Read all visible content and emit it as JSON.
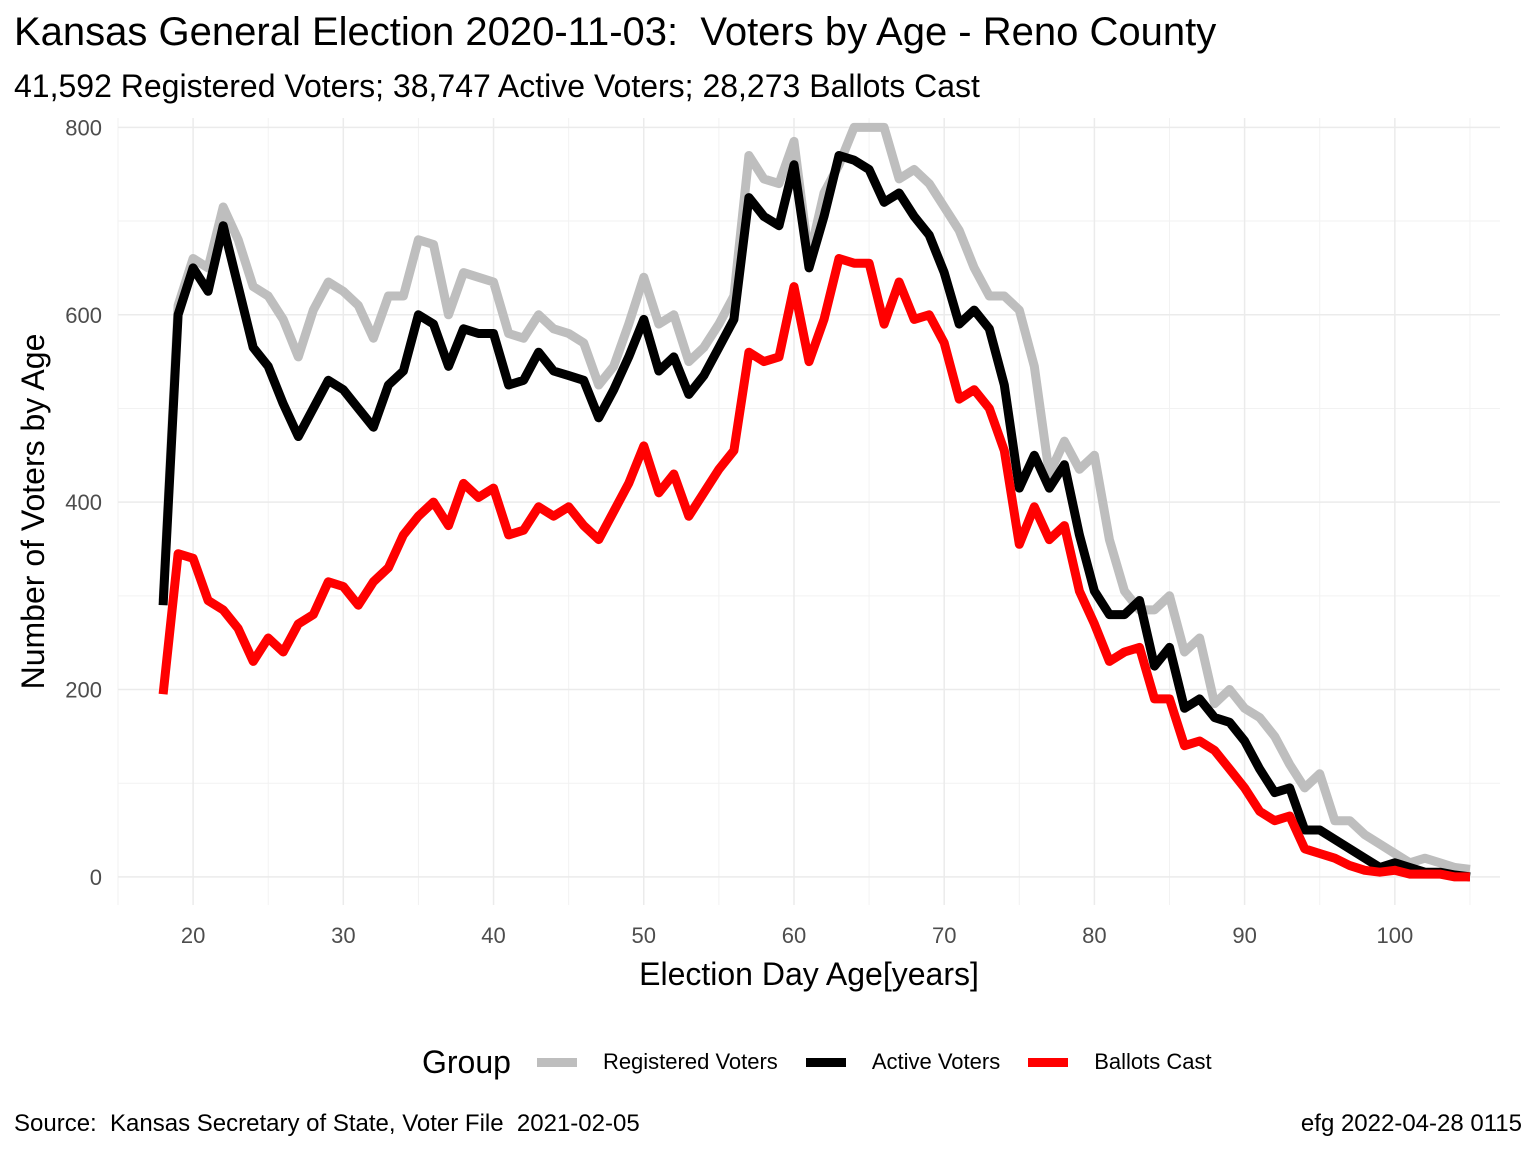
{
  "title": "Kansas General Election 2020-11-03:  Voters by Age - Reno County",
  "subtitle": "41,592 Registered Voters; 38,747 Active Voters; 28,273 Ballots Cast",
  "caption_left": "Source:  Kansas Secretary of State, Voter File  2021-02-05",
  "caption_right": "efg 2022-04-28 0115",
  "legend": {
    "title": "Group",
    "position": "bottom",
    "items": [
      {
        "label": "Registered Voters",
        "color": "#bebebe"
      },
      {
        "label": "Active Voters",
        "color": "#000000"
      },
      {
        "label": "Ballots Cast",
        "color": "#ff0000"
      }
    ]
  },
  "chart_data": {
    "type": "line",
    "xlabel": "Election Day Age[years]",
    "ylabel": "Number of Voters by Age",
    "xlim": [
      15,
      107
    ],
    "ylim": [
      -30,
      810
    ],
    "xticks": [
      20,
      30,
      40,
      50,
      60,
      70,
      80,
      90,
      100
    ],
    "yticks": [
      0,
      200,
      400,
      600,
      800
    ],
    "grid": true,
    "x_start": 18,
    "series": [
      {
        "name": "Registered Voters",
        "color": "#bebebe",
        "values": [
          295,
          610,
          660,
          650,
          715,
          680,
          630,
          620,
          595,
          555,
          605,
          635,
          625,
          610,
          575,
          620,
          620,
          680,
          675,
          600,
          645,
          640,
          635,
          580,
          575,
          600,
          585,
          580,
          570,
          525,
          545,
          590,
          640,
          590,
          600,
          550,
          565,
          590,
          620,
          770,
          745,
          740,
          785,
          660,
          730,
          760,
          800,
          800,
          800,
          745,
          755,
          740,
          715,
          690,
          650,
          620,
          620,
          605,
          545,
          430,
          465,
          435,
          450,
          360,
          305,
          285,
          285,
          300,
          240,
          255,
          185,
          200,
          180,
          170,
          150,
          120,
          95,
          110,
          60,
          60,
          45,
          35,
          25,
          15,
          20,
          15,
          10,
          8
        ]
      },
      {
        "name": "Active Voters",
        "color": "#000000",
        "values": [
          290,
          600,
          650,
          625,
          695,
          630,
          565,
          545,
          505,
          470,
          500,
          530,
          520,
          500,
          480,
          525,
          540,
          600,
          590,
          545,
          585,
          580,
          580,
          525,
          530,
          560,
          540,
          535,
          530,
          490,
          520,
          555,
          595,
          540,
          555,
          515,
          535,
          565,
          595,
          725,
          705,
          695,
          760,
          650,
          705,
          770,
          765,
          755,
          720,
          730,
          705,
          685,
          645,
          590,
          605,
          585,
          525,
          415,
          450,
          415,
          440,
          365,
          305,
          280,
          280,
          295,
          225,
          245,
          180,
          190,
          170,
          165,
          145,
          115,
          90,
          95,
          50,
          50,
          40,
          30,
          20,
          10,
          15,
          10,
          5,
          5,
          2,
          0
        ]
      },
      {
        "name": "Ballots Cast",
        "color": "#ff0000",
        "values": [
          195,
          345,
          340,
          295,
          285,
          265,
          230,
          255,
          240,
          270,
          280,
          315,
          310,
          290,
          315,
          330,
          365,
          385,
          400,
          375,
          420,
          405,
          415,
          365,
          370,
          395,
          385,
          395,
          375,
          360,
          390,
          420,
          460,
          410,
          430,
          385,
          410,
          435,
          455,
          560,
          550,
          555,
          630,
          550,
          595,
          660,
          655,
          655,
          590,
          635,
          595,
          600,
          570,
          510,
          520,
          500,
          455,
          355,
          395,
          360,
          375,
          305,
          270,
          230,
          240,
          245,
          190,
          190,
          140,
          145,
          135,
          115,
          95,
          70,
          60,
          65,
          30,
          25,
          20,
          12,
          7,
          5,
          7,
          3,
          3,
          3,
          0,
          0
        ]
      }
    ]
  }
}
